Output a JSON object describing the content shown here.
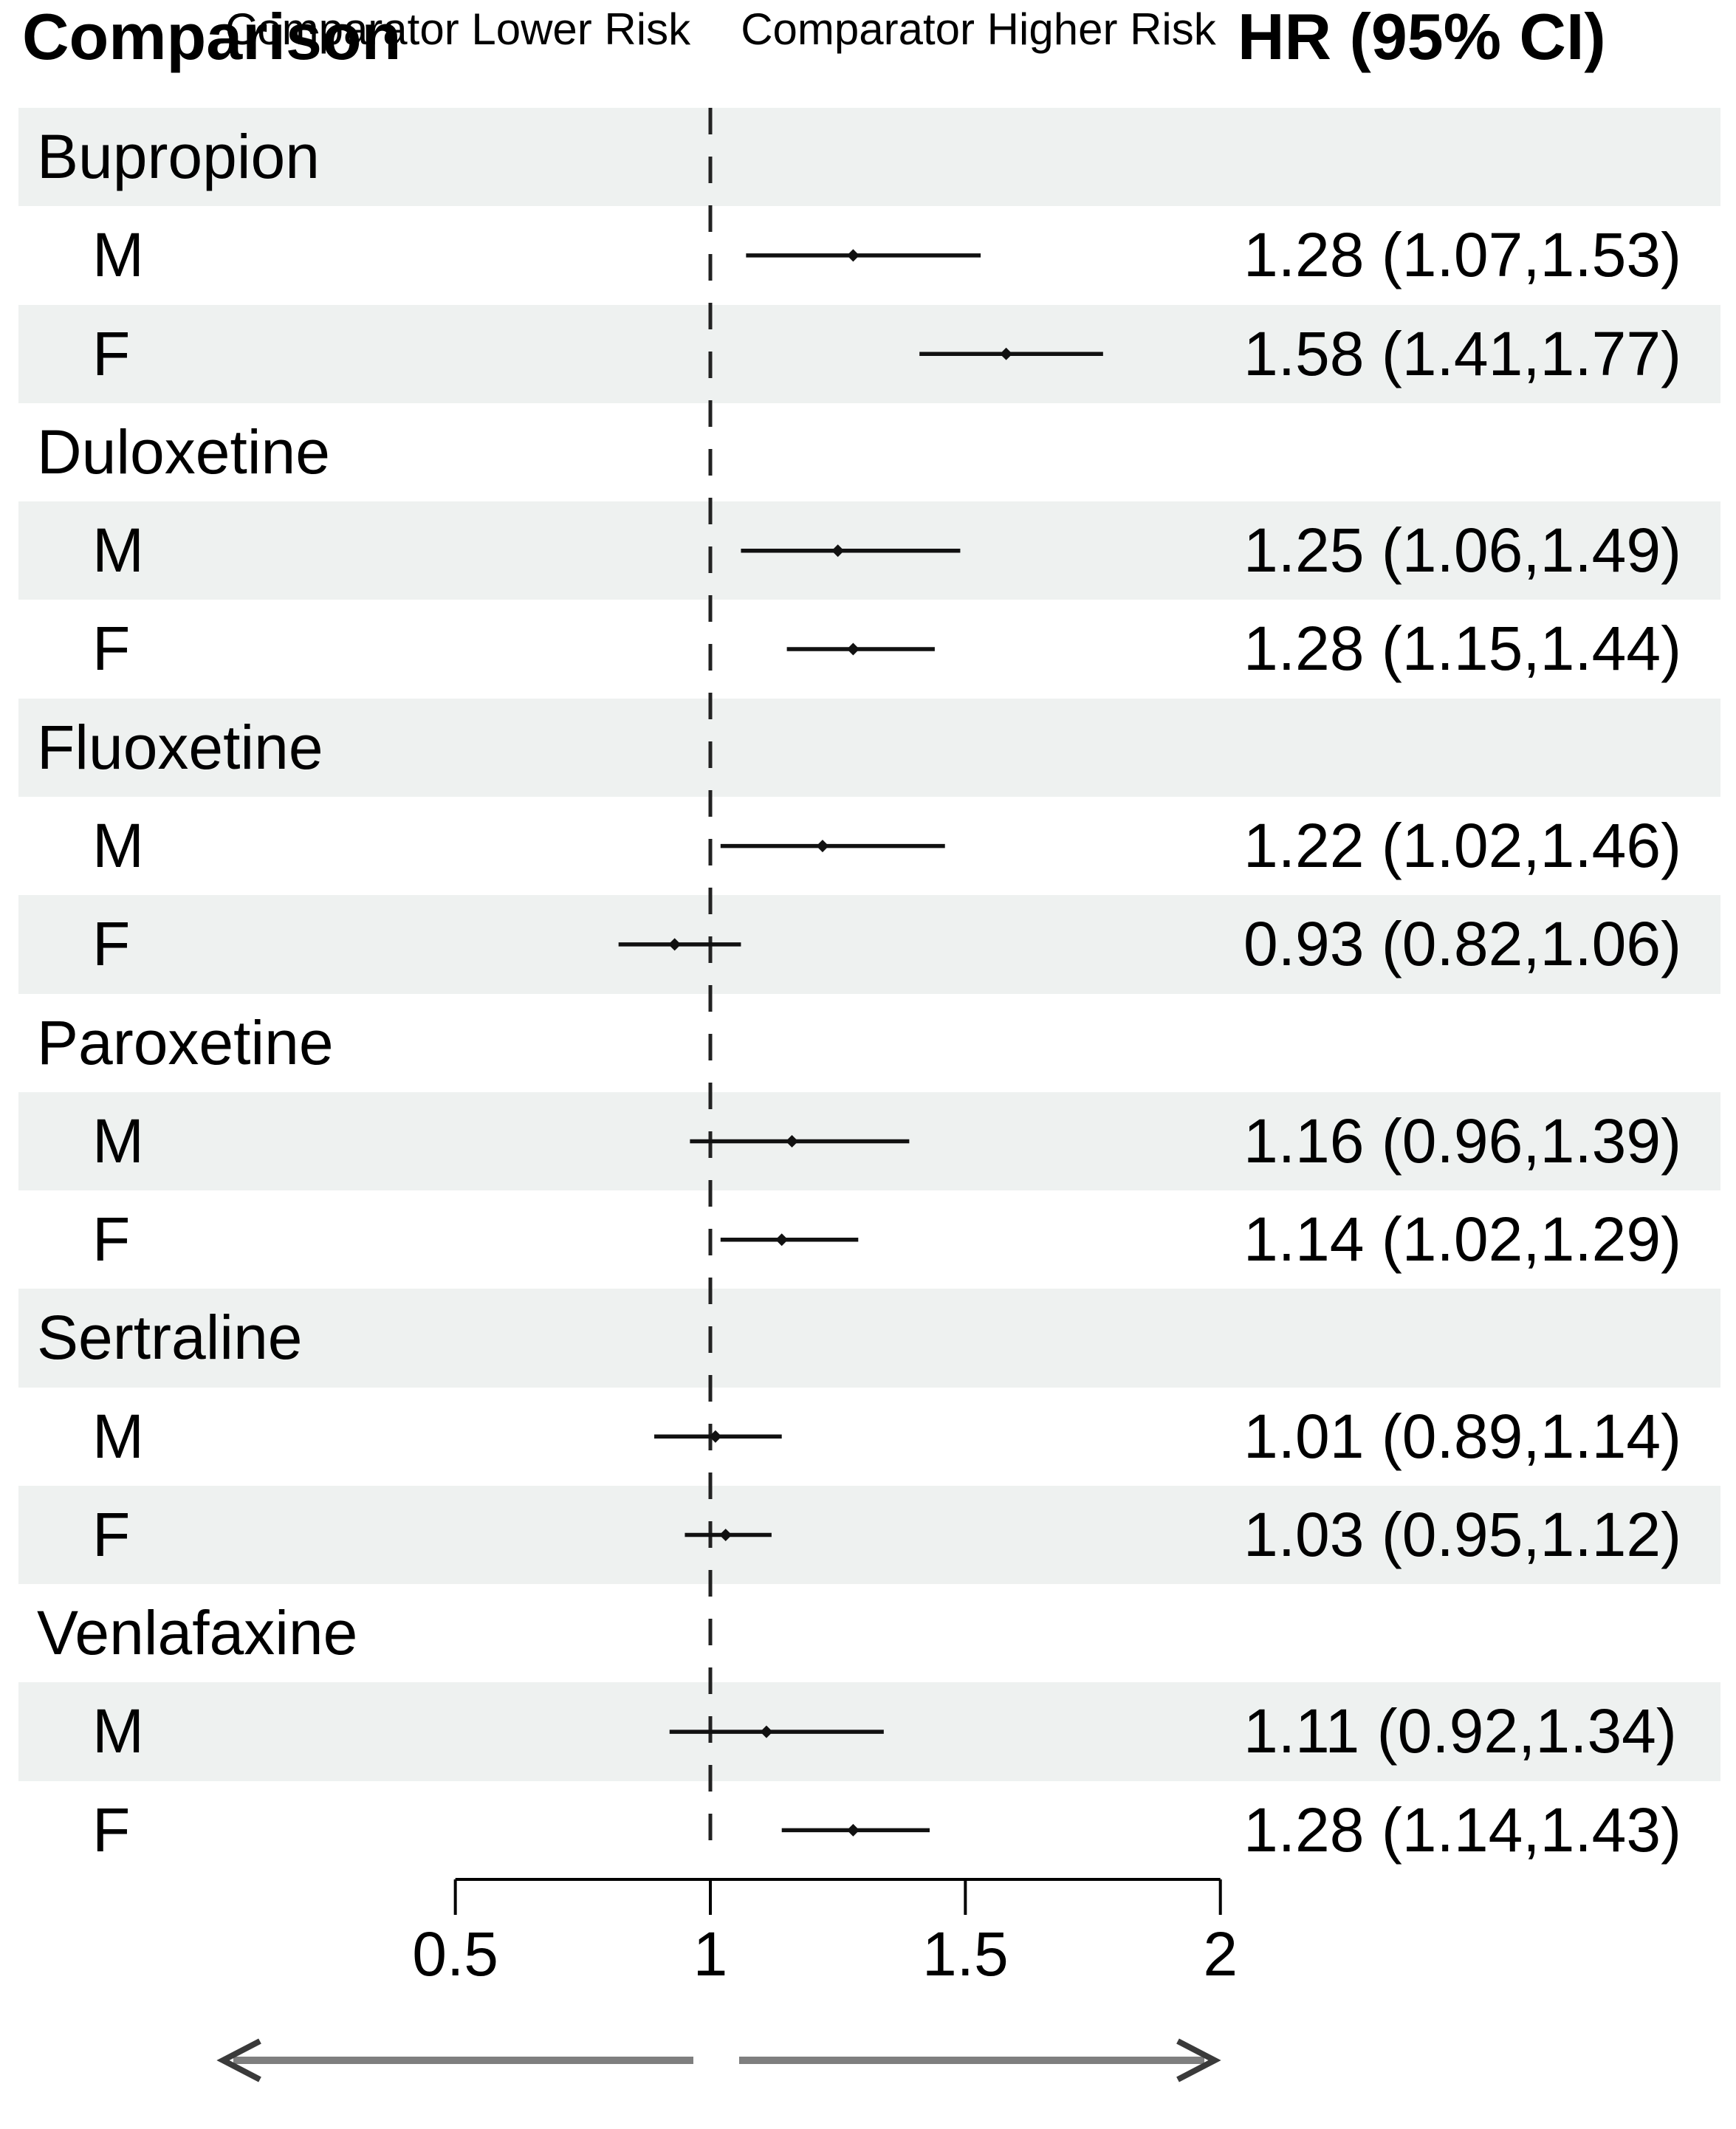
{
  "header": {
    "comparison": "Comparison",
    "hr": "HR (95% CI)"
  },
  "colors": {
    "band": "#eef1f0",
    "text": "#000000",
    "ci_line": "#111111",
    "reference_line": "#222222",
    "axis": "#000000",
    "arrow_shaft": "#7f7f7f",
    "arrow_head": "#3a3a3a"
  },
  "chart_data": {
    "type": "forest",
    "title": "",
    "x_axis": {
      "range": [
        0.5,
        2
      ],
      "ticks": [
        0.5,
        1,
        1.5,
        2
      ],
      "tick_labels": [
        "0.5",
        "1",
        "1.5",
        "2"
      ],
      "reference_line": 1
    },
    "groups": [
      {
        "drug": "Bupropion",
        "rows": [
          {
            "sex": "M",
            "hr": 1.28,
            "lo": 1.07,
            "hi": 1.53,
            "label": "1.28 (1.07,1.53)"
          },
          {
            "sex": "F",
            "hr": 1.58,
            "lo": 1.41,
            "hi": 1.77,
            "label": "1.58 (1.41,1.77)"
          }
        ]
      },
      {
        "drug": "Duloxetine",
        "rows": [
          {
            "sex": "M",
            "hr": 1.25,
            "lo": 1.06,
            "hi": 1.49,
            "label": "1.25 (1.06,1.49)"
          },
          {
            "sex": "F",
            "hr": 1.28,
            "lo": 1.15,
            "hi": 1.44,
            "label": "1.28 (1.15,1.44)"
          }
        ]
      },
      {
        "drug": "Fluoxetine",
        "rows": [
          {
            "sex": "M",
            "hr": 1.22,
            "lo": 1.02,
            "hi": 1.46,
            "label": "1.22 (1.02,1.46)"
          },
          {
            "sex": "F",
            "hr": 0.93,
            "lo": 0.82,
            "hi": 1.06,
            "label": "0.93 (0.82,1.06)"
          }
        ]
      },
      {
        "drug": "Paroxetine",
        "rows": [
          {
            "sex": "M",
            "hr": 1.16,
            "lo": 0.96,
            "hi": 1.39,
            "label": "1.16 (0.96,1.39)"
          },
          {
            "sex": "F",
            "hr": 1.14,
            "lo": 1.02,
            "hi": 1.29,
            "label": "1.14 (1.02,1.29)"
          }
        ]
      },
      {
        "drug": "Sertraline",
        "rows": [
          {
            "sex": "M",
            "hr": 1.01,
            "lo": 0.89,
            "hi": 1.14,
            "label": "1.01 (0.89,1.14)"
          },
          {
            "sex": "F",
            "hr": 1.03,
            "lo": 0.95,
            "hi": 1.12,
            "label": "1.03 (0.95,1.12)"
          }
        ]
      },
      {
        "drug": "Venlafaxine",
        "rows": [
          {
            "sex": "M",
            "hr": 1.11,
            "lo": 0.92,
            "hi": 1.34,
            "label": "1.11 (0.92,1.34)"
          },
          {
            "sex": "F",
            "hr": 1.28,
            "lo": 1.14,
            "hi": 1.43,
            "label": "1.28 (1.14,1.43)"
          }
        ]
      }
    ],
    "footer": {
      "left_arrow_label": "Comparator Lower Risk",
      "right_arrow_label": "Comparator Higher Risk"
    }
  }
}
